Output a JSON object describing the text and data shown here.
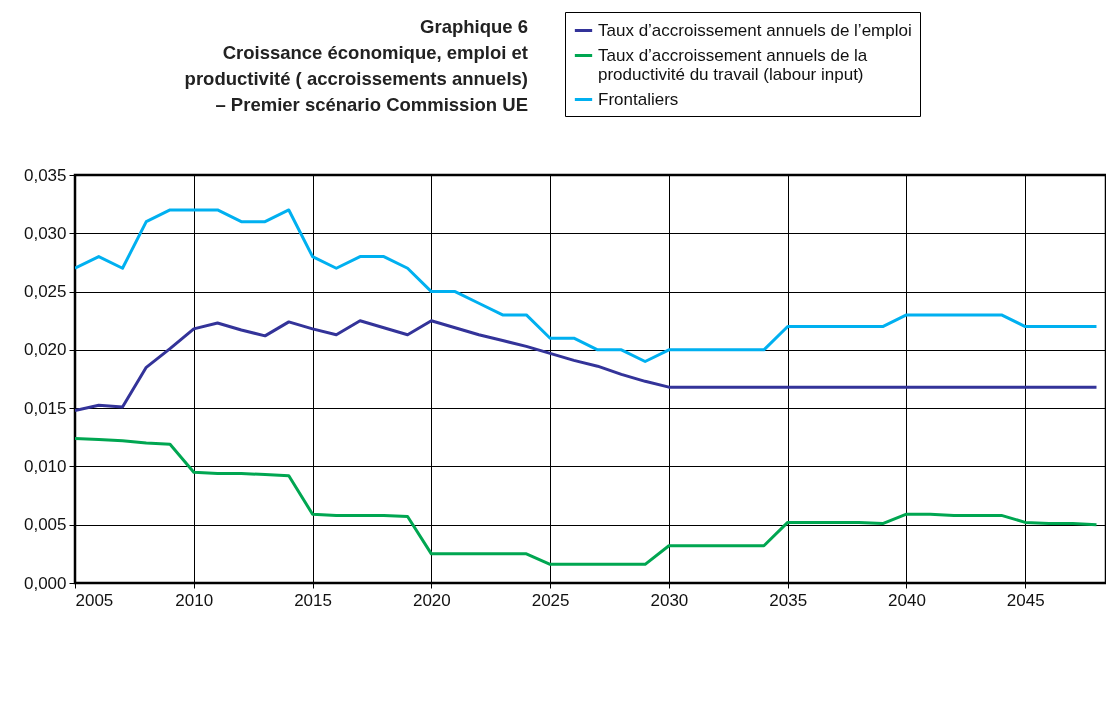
{
  "chart_data": {
    "type": "line",
    "title": "Graphique 6",
    "subtitle": "Croissance économique, emploi et productivité ( accroissements annuels) – Premier scénario Commission UE",
    "x": [
      2005,
      2006,
      2007,
      2008,
      2009,
      2010,
      2011,
      2012,
      2013,
      2014,
      2015,
      2016,
      2017,
      2018,
      2019,
      2020,
      2021,
      2022,
      2023,
      2024,
      2025,
      2026,
      2027,
      2028,
      2029,
      2030,
      2031,
      2032,
      2033,
      2034,
      2035,
      2036,
      2037,
      2038,
      2039,
      2040,
      2041,
      2042,
      2043,
      2044,
      2045,
      2046,
      2047,
      2048
    ],
    "xlim": [
      2005,
      2048.4
    ],
    "xticks": [
      2005,
      2010,
      2015,
      2020,
      2025,
      2030,
      2035,
      2040,
      2045
    ],
    "ylim": [
      0,
      0.035
    ],
    "yticks": [
      {
        "value": 0,
        "label": "0,000"
      },
      {
        "value": 0.005,
        "label": "0,005"
      },
      {
        "value": 0.01,
        "label": "0,010"
      },
      {
        "value": 0.015,
        "label": "0,015"
      },
      {
        "value": 0.02,
        "label": "0,020"
      },
      {
        "value": 0.025,
        "label": "0,025"
      },
      {
        "value": 0.03,
        "label": "0,030"
      },
      {
        "value": 0.035,
        "label": "0,035"
      }
    ],
    "grid": true,
    "legend": "top right",
    "series": [
      {
        "name": "Taux d’accroissement annuels de l’emploi",
        "color": "#333399",
        "values": [
          0.0148,
          0.01525,
          0.0151,
          0.0185,
          0.0201,
          0.0218,
          0.0223,
          0.0217,
          0.0212,
          0.0224,
          0.0218,
          0.0213,
          0.0225,
          0.0219,
          0.0213,
          0.0225,
          0.0219,
          0.0213,
          0.0208,
          0.0203,
          0.0197,
          0.0191,
          0.0186,
          0.0179,
          0.0173,
          0.0168,
          0.0168,
          0.0168,
          0.0168,
          0.0168,
          0.0168,
          0.0168,
          0.0168,
          0.0168,
          0.0168,
          0.0168,
          0.0168,
          0.0168,
          0.0168,
          0.0168,
          0.0168,
          0.0168,
          0.0168,
          0.0168
        ]
      },
      {
        "name": "Taux d’accroissement annuels de la productivité du travail (labour input)",
        "color": "#00a651",
        "values": [
          0.0124,
          0.0123,
          0.0122,
          0.012,
          0.0119,
          0.0095,
          0.0094,
          0.0094,
          0.0093,
          0.0092,
          0.0059,
          0.0058,
          0.0058,
          0.0058,
          0.0057,
          0.0025,
          0.0025,
          0.0025,
          0.0025,
          0.0025,
          0.0016,
          0.0016,
          0.0016,
          0.0016,
          0.0016,
          0.0032,
          0.0032,
          0.0032,
          0.0032,
          0.0032,
          0.0052,
          0.0052,
          0.0052,
          0.0052,
          0.0051,
          0.0059,
          0.0059,
          0.0058,
          0.0058,
          0.0058,
          0.0052,
          0.0051,
          0.0051,
          0.005
        ]
      },
      {
        "name": "Frontaliers",
        "color": "#00b0f0",
        "values": [
          0.027,
          0.028,
          0.027,
          0.031,
          0.032,
          0.032,
          0.032,
          0.031,
          0.031,
          0.032,
          0.028,
          0.027,
          0.028,
          0.028,
          0.027,
          0.025,
          0.025,
          0.024,
          0.023,
          0.023,
          0.021,
          0.021,
          0.02,
          0.02,
          0.019,
          0.02,
          0.02,
          0.02,
          0.02,
          0.02,
          0.022,
          0.022,
          0.022,
          0.022,
          0.022,
          0.023,
          0.023,
          0.023,
          0.023,
          0.023,
          0.022,
          0.022,
          0.022,
          0.022
        ]
      }
    ]
  }
}
